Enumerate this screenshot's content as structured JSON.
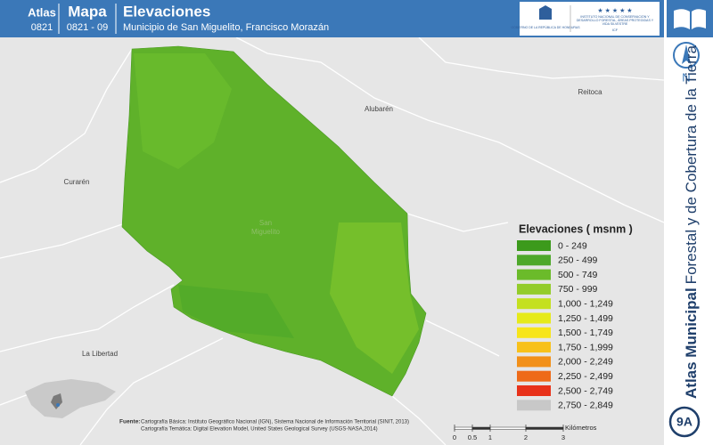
{
  "header": {
    "atlas_label": "Atlas",
    "atlas_code": "0821",
    "map_label": "Mapa",
    "map_code": "0821 - 09",
    "title": "Elevaciones",
    "subtitle": "Municipio de San Miguelito, Francisco Morazán"
  },
  "logos": {
    "government": "GOBIERNO DE LA REPÚBLICA DE HONDURAS",
    "institute": "INSTITUTO NACIONAL DE CONSERVACIÓN Y DESARROLLO FORESTAL, ÁREAS PROTEGIDAS Y VIDA SILVESTRE",
    "acronym": "ICF"
  },
  "sidebar": {
    "title_bold": "Atlas Municipal",
    "title_rest": "Forestal y de Cobertura de la Tierra",
    "north": "N",
    "page": "9A"
  },
  "map": {
    "places": [
      "Alubarén",
      "Reitoca",
      "Curarén",
      "La Libertad"
    ],
    "municipality": [
      "San",
      "Miguelito"
    ]
  },
  "legend": {
    "title": "Elevaciones ( msnm )",
    "items": [
      {
        "label": "0 - 249",
        "color": "#3c9a1c"
      },
      {
        "label": "250 - 499",
        "color": "#4ea82a"
      },
      {
        "label": "500 - 749",
        "color": "#6bbb2a"
      },
      {
        "label": "750 - 999",
        "color": "#93cc2a"
      },
      {
        "label": "1,000 - 1,249",
        "color": "#c4e01f"
      },
      {
        "label": "1,250 - 1,499",
        "color": "#e6ea1a"
      },
      {
        "label": "1,500 - 1,749",
        "color": "#f7e51a"
      },
      {
        "label": "1,750 - 1,999",
        "color": "#f8c11a"
      },
      {
        "label": "2,000 - 2,249",
        "color": "#f29019"
      },
      {
        "label": "2,250 - 2,499",
        "color": "#ee6a18"
      },
      {
        "label": "2,500 - 2,749",
        "color": "#e8321a"
      },
      {
        "label": "2,750 - 2,849",
        "color": "#c8c8c8"
      }
    ]
  },
  "source": {
    "lead": "Fuente:",
    "lines": [
      "Cartografía Básica: Instituto Geográfico Nacional (IGN), Sistema Nacional de Información Territorial (SINIT, 2013)",
      "Cartografía Temática: Digital Elevation Model, United States Geological Survey (USGS-NASA,2014)"
    ]
  },
  "scale": {
    "ticks": [
      "0",
      "0.5",
      "1",
      "2",
      "3"
    ],
    "unit": "Kilómetros"
  }
}
